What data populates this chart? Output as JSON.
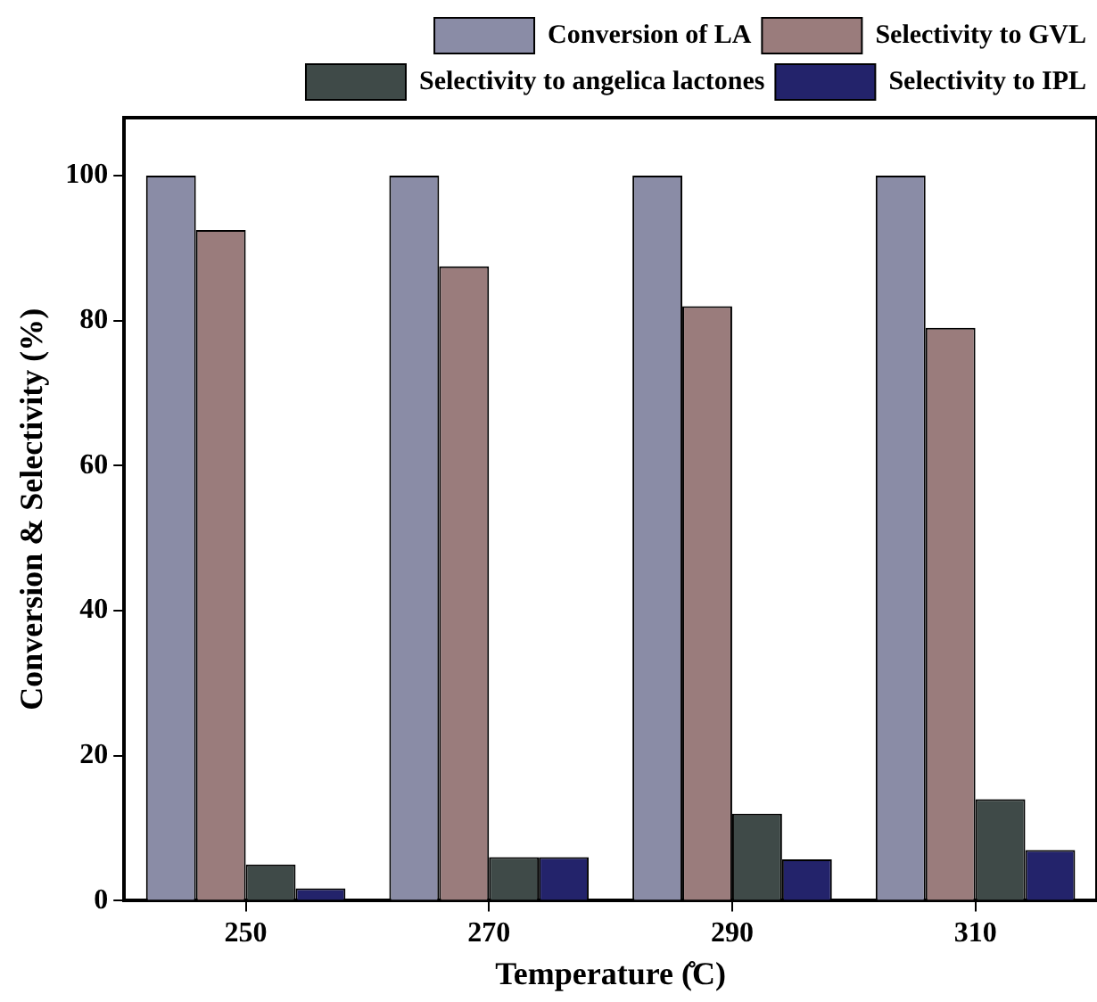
{
  "chart_data": {
    "type": "bar",
    "xlabel": "Temperature (̊C)",
    "ylabel": "Conversion & Selectivity (%)",
    "categories": [
      "250",
      "270",
      "290",
      "310"
    ],
    "series": [
      {
        "name": "Conversion of LA",
        "color": "#8a8ca6",
        "values": [
          100,
          100,
          100,
          100
        ]
      },
      {
        "name": "Selectivity to GVL",
        "color": "#9a7c7c",
        "values": [
          92.5,
          87.5,
          82,
          79
        ]
      },
      {
        "name": "Selectivity to angelica lactones",
        "color": "#3f4a48",
        "values": [
          5,
          6,
          12,
          14
        ]
      },
      {
        "name": "Selectivity to IPL",
        "color": "#23236b",
        "values": [
          1.7,
          6,
          5.7,
          7
        ]
      }
    ],
    "ylim": [
      0,
      108
    ],
    "yticks": [
      0,
      20,
      40,
      60,
      80,
      100
    ],
    "grid": false,
    "legend": "top"
  }
}
